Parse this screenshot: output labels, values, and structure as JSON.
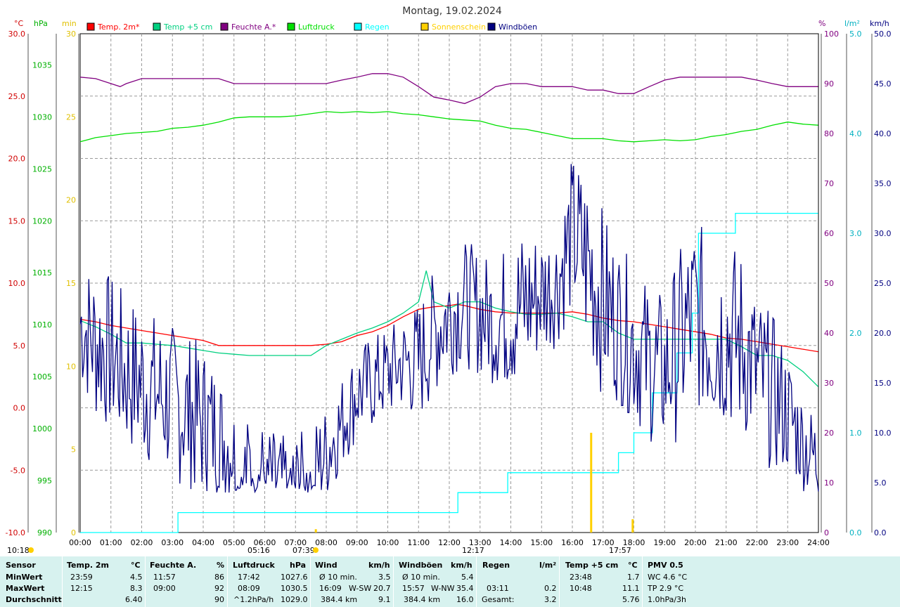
{
  "title": "Montag, 19.02.2024",
  "colors": {
    "temp2m": "#ff0000",
    "temp5cm": "#00d080",
    "feuchte": "#800080",
    "luftdruck": "#00e000",
    "regen": "#00ffff",
    "sonne": "#ffd000",
    "wind": "#000080"
  },
  "axes": {
    "left1_unit": "°C",
    "left2_unit": "hPa",
    "left3_unit": "min",
    "right1_unit": "%",
    "right2_unit": "l/m²",
    "right3_unit": "km/h"
  },
  "chart_data": {
    "type": "line",
    "x_ticks": [
      "00:00",
      "01:00",
      "02:00",
      "03:00",
      "04:00",
      "05:00",
      "06:00",
      "07:00",
      "08:00",
      "09:00",
      "10:00",
      "11:00",
      "12:00",
      "13:00",
      "14:00",
      "15:00",
      "16:00",
      "17:00",
      "18:00",
      "19:00",
      "20:00",
      "21:00",
      "22:00",
      "23:00",
      "24:00"
    ],
    "xlim": [
      0,
      24
    ],
    "axes_ticks": {
      "temp": [
        "30.0",
        "25.0",
        "20.0",
        "15.0",
        "10.0",
        "5.0",
        "0.0",
        "-5.0",
        "-10.0"
      ],
      "pressure": [
        "1035",
        "1030",
        "1025",
        "1020",
        "1015",
        "1010",
        "1005",
        "1000",
        "995",
        "990"
      ],
      "minutes": [
        "30",
        "25",
        "20",
        "15",
        "10",
        "5",
        "0"
      ],
      "humidity": [
        "100",
        "90",
        "80",
        "70",
        "60",
        "50",
        "40",
        "30",
        "20",
        "10",
        "0"
      ],
      "rain": [
        "5.0",
        "4.0",
        "3.0",
        "2.0",
        "1.0",
        "0.0"
      ],
      "wind": [
        "50.0",
        "45.0",
        "40.0",
        "35.0",
        "30.0",
        "25.0",
        "20.0",
        "15.0",
        "10.0",
        "5.0",
        "0.0"
      ]
    },
    "ylims": {
      "temp": [
        -10,
        30
      ],
      "pressure": [
        990,
        1038
      ],
      "minutes": [
        0,
        30
      ],
      "humidity": [
        0,
        100
      ],
      "rain": [
        0,
        5
      ],
      "wind": [
        0,
        50
      ]
    },
    "series": [
      {
        "name": "Temp. 2m*",
        "axis": "temp",
        "color": "#ff0000",
        "x": [
          0,
          0.5,
          1,
          1.5,
          2,
          2.5,
          3,
          3.5,
          4,
          4.5,
          5,
          5.5,
          6,
          6.5,
          7,
          7.5,
          8,
          8.5,
          9,
          9.5,
          10,
          10.5,
          11,
          11.5,
          12,
          12.25,
          12.5,
          13,
          13.5,
          14,
          14.5,
          15,
          15.5,
          16,
          16.5,
          17,
          17.5,
          18,
          18.5,
          19,
          19.5,
          20,
          20.5,
          21,
          21.5,
          22,
          22.5,
          23,
          23.5,
          23.99
        ],
        "y": [
          7.1,
          6.9,
          6.6,
          6.4,
          6.2,
          6.0,
          5.8,
          5.6,
          5.4,
          5.0,
          5.0,
          5.0,
          5.0,
          5.0,
          5.0,
          5.0,
          5.1,
          5.3,
          5.8,
          6.1,
          6.6,
          7.3,
          7.9,
          8.1,
          8.2,
          8.3,
          8.2,
          7.9,
          7.7,
          7.6,
          7.6,
          7.6,
          7.6,
          7.7,
          7.5,
          7.2,
          7.0,
          6.9,
          6.7,
          6.5,
          6.3,
          6.1,
          5.9,
          5.6,
          5.5,
          5.3,
          5.1,
          4.9,
          4.7,
          4.5
        ]
      },
      {
        "name": "Temp +5 cm",
        "axis": "temp",
        "color": "#00d080",
        "x": [
          0,
          0.5,
          1,
          1.5,
          2,
          2.5,
          3,
          3.5,
          4,
          4.5,
          5,
          5.5,
          6,
          6.5,
          7,
          7.5,
          8,
          8.5,
          9,
          9.5,
          10,
          10.5,
          11,
          11.25,
          11.5,
          12,
          12.5,
          13,
          13.5,
          14,
          14.5,
          15,
          15.5,
          16,
          16.5,
          17,
          17.5,
          18,
          18.5,
          19,
          19.5,
          20,
          20.5,
          21,
          21.5,
          22,
          22.5,
          23,
          23.5,
          23.99
        ],
        "y": [
          7.0,
          6.5,
          5.9,
          5.2,
          5.2,
          5.1,
          5.0,
          4.8,
          4.6,
          4.4,
          4.3,
          4.2,
          4.2,
          4.2,
          4.2,
          4.2,
          5.0,
          5.5,
          6.0,
          6.4,
          6.9,
          7.6,
          8.5,
          11.0,
          8.5,
          8.0,
          8.5,
          8.5,
          8.0,
          7.7,
          7.5,
          7.5,
          7.6,
          7.3,
          6.9,
          6.9,
          6.0,
          5.5,
          5.5,
          5.5,
          5.5,
          5.5,
          5.5,
          5.5,
          4.9,
          4.2,
          4.2,
          3.8,
          2.9,
          1.7
        ]
      },
      {
        "name": "Feuchte A.*",
        "axis": "humidity",
        "color": "#800080",
        "x": [
          0,
          0.5,
          1,
          1.3,
          1.5,
          2,
          2.5,
          3,
          3.5,
          4,
          4.5,
          5,
          5.5,
          6,
          6.5,
          7,
          7.5,
          8,
          8.5,
          9,
          9.5,
          10,
          10.5,
          11,
          11.5,
          12,
          12.5,
          13,
          13.5,
          14,
          14.5,
          15,
          15.5,
          16,
          16.5,
          17,
          17.5,
          18,
          18.5,
          19,
          19.5,
          20,
          20.5,
          21,
          21.5,
          22,
          22.5,
          23,
          23.5,
          23.99
        ],
        "y": [
          91.3,
          91.0,
          90.0,
          89.4,
          90.0,
          91.0,
          91.0,
          91.0,
          91.0,
          91.0,
          91.0,
          90.0,
          90.0,
          90.0,
          90.0,
          90.0,
          90.0,
          90.0,
          90.7,
          91.3,
          92.0,
          92.0,
          91.3,
          89.4,
          87.3,
          86.7,
          86.0,
          87.3,
          89.4,
          90.0,
          90.0,
          89.4,
          89.4,
          89.4,
          88.7,
          88.7,
          88.0,
          88.0,
          89.4,
          90.7,
          91.3,
          91.3,
          91.3,
          91.3,
          91.3,
          90.7,
          90.0,
          89.4,
          89.4,
          89.4
        ]
      },
      {
        "name": "Luftdruck",
        "axis": "pressure",
        "color": "#00e000",
        "x": [
          0,
          0.5,
          1,
          1.5,
          2,
          2.5,
          3,
          3.5,
          4,
          4.5,
          5,
          5.5,
          6,
          6.5,
          7,
          7.5,
          8,
          8.5,
          9,
          9.5,
          10,
          10.5,
          11,
          11.5,
          12,
          12.5,
          13,
          13.5,
          14,
          14.5,
          15,
          15.5,
          16,
          16.5,
          17,
          17.5,
          18,
          18.5,
          19,
          19.5,
          20,
          20.5,
          21,
          21.5,
          22,
          22.5,
          23,
          23.5,
          23.99
        ],
        "y": [
          1027.6,
          1028.0,
          1028.2,
          1028.4,
          1028.5,
          1028.6,
          1028.9,
          1029.0,
          1029.2,
          1029.5,
          1029.9,
          1030.0,
          1030.0,
          1030.0,
          1030.1,
          1030.3,
          1030.5,
          1030.4,
          1030.5,
          1030.4,
          1030.5,
          1030.3,
          1030.2,
          1030.0,
          1029.8,
          1029.7,
          1029.6,
          1029.2,
          1028.9,
          1028.8,
          1028.5,
          1028.2,
          1027.9,
          1027.9,
          1027.9,
          1027.7,
          1027.6,
          1027.7,
          1027.8,
          1027.7,
          1027.8,
          1028.1,
          1028.3,
          1028.6,
          1028.8,
          1029.2,
          1029.5,
          1029.3,
          1029.2
        ]
      },
      {
        "name": "Regen",
        "axis": "rain",
        "color": "#00ffff",
        "step": true,
        "x": [
          0,
          3.18,
          3.18,
          12.28,
          12.28,
          13.9,
          13.9,
          17.5,
          17.5,
          18.0,
          18.0,
          18.6,
          18.6,
          19.4,
          19.4,
          19.9,
          19.9,
          20.1,
          20.1,
          21.3,
          21.3,
          23.99
        ],
        "y": [
          0,
          0,
          0.2,
          0.2,
          0.4,
          0.4,
          0.6,
          0.6,
          0.8,
          0.8,
          1.0,
          1.0,
          1.4,
          1.4,
          1.8,
          1.8,
          2.2,
          2.2,
          3.0,
          3.0,
          3.2,
          3.2
        ]
      },
      {
        "name": "Sonnenschein",
        "axis": "minutes",
        "color": "#ffd000",
        "bars": true,
        "x": [
          7.65,
          16.6,
          17.95
        ],
        "y": [
          0.2,
          6.0,
          0.8
        ]
      },
      {
        "name": "Windböen",
        "axis": "wind",
        "color": "#000080",
        "noisy": true,
        "x": [
          0,
          0.5,
          1,
          1.5,
          2,
          2.5,
          3,
          3.5,
          4,
          4.5,
          5,
          5.3,
          5.5,
          6,
          6.5,
          7,
          7.5,
          8,
          8.5,
          9,
          9.5,
          10,
          10.5,
          11,
          11.5,
          12,
          12.5,
          13,
          13.5,
          14,
          14.5,
          15,
          15.5,
          16,
          16.5,
          17,
          17.5,
          18,
          18.5,
          19,
          19.5,
          20,
          20.5,
          21,
          21.5,
          22,
          22.5,
          23,
          23.5,
          23.99
        ],
        "y": [
          21,
          19,
          18,
          16,
          15,
          14,
          13,
          12,
          11,
          10,
          8,
          6,
          7,
          6,
          5,
          5,
          6,
          8,
          11,
          14,
          15,
          16,
          17,
          17,
          20,
          22,
          23,
          22,
          21,
          22,
          23,
          24,
          25,
          30,
          27,
          23,
          21,
          19,
          17,
          16,
          19,
          22,
          20,
          20,
          19,
          16,
          14,
          12,
          9,
          7
        ],
        "amp": [
          4,
          5,
          5,
          5,
          5,
          5,
          5,
          5,
          5,
          4,
          3,
          3,
          3,
          3,
          3,
          3,
          3,
          3,
          3,
          3,
          3,
          3,
          3,
          4,
          4,
          4,
          4,
          4,
          4,
          5,
          5,
          4,
          4,
          5,
          6,
          6,
          5,
          5,
          5,
          5,
          6,
          6,
          6,
          6,
          6,
          5,
          5,
          4,
          3,
          3
        ]
      }
    ],
    "legend": [
      "Temp. 2m*",
      "Temp +5 cm",
      "Feuchte A.*",
      "Luftdruck",
      "Regen",
      "Sonnenschein",
      "Windböen"
    ],
    "annotations": {
      "left_time": "10:18",
      "sunrise": "07:39",
      "sunset": "17:57",
      "moonrise": "05:16",
      "moon_time": "12:17"
    }
  },
  "table": {
    "headers": {
      "sensor": "Sensor",
      "temp": "Temp. 2m",
      "temp_u": "°C",
      "feuchte": "Feuchte A.",
      "feuchte_u": "%",
      "druck": "Luftdruck",
      "druck_u": "hPa",
      "wind": "Wind",
      "wind_u": "km/h",
      "boen": "Windböen",
      "boen_u": "km/h",
      "regen": "Regen",
      "regen_u": "l/m²",
      "t5": "Temp +5 cm",
      "t5_u": "°C",
      "pmv": "PMV 0.5"
    },
    "rows": {
      "min": {
        "label": "MinWert",
        "temp_t": "23:59",
        "temp_v": "4.5",
        "feuchte_t": "11:57",
        "feuchte_v": "86",
        "druck_t": "17:42",
        "druck_v": "1027.6",
        "wind_l": "Ø 10 min.",
        "wind_v": "3.5",
        "boen_l": "Ø 10 min.",
        "boen_v": "5.4",
        "t5_t": "23:48",
        "t5_v": "1.7",
        "pmv": "WC 4.6 °C"
      },
      "max": {
        "label": "MaxWert",
        "temp_t": "12:15",
        "temp_v": "8.3",
        "feuchte_t": "09:00",
        "feuchte_v": "92",
        "druck_t": "08:09",
        "druck_v": "1030.5",
        "wind_t": "16:09",
        "wind_d": "W-SW",
        "wind_v": "20.7",
        "boen_t": "15:57",
        "boen_d": "W-NW",
        "boen_v": "35.4",
        "regen_t": "03:11",
        "regen_v": "0.2",
        "t5_t": "10:48",
        "t5_v": "11.1",
        "pmv": "TP 2.9 °C"
      },
      "avg": {
        "label": "Durchschnitt",
        "temp_v": "6.40",
        "feuchte_v": "90",
        "druck_l": "^1.2hPa/h",
        "druck_v": "1029.0",
        "wind_l": "384.4 km",
        "wind_v": "9.1",
        "boen_l": "384.4 km",
        "boen_v": "16.0",
        "regen_l": "Gesamt:",
        "regen_v": "3.2",
        "t5_v": "5.76",
        "pmv": "1.0hPa/3h"
      }
    }
  }
}
